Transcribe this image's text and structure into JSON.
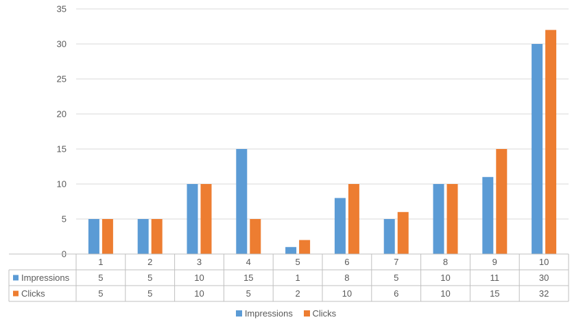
{
  "chart_data": {
    "type": "bar",
    "categories": [
      "1",
      "2",
      "3",
      "4",
      "5",
      "6",
      "7",
      "8",
      "9",
      "10"
    ],
    "series": [
      {
        "name": "Impressions",
        "color": "#5b9bd5",
        "values": [
          5,
          5,
          10,
          15,
          1,
          8,
          5,
          10,
          11,
          30
        ]
      },
      {
        "name": "Clicks",
        "color": "#ed7d31",
        "values": [
          5,
          5,
          10,
          5,
          2,
          10,
          6,
          10,
          15,
          32
        ]
      }
    ],
    "ylim": [
      0,
      35
    ],
    "yticks": [
      0,
      5,
      10,
      15,
      20,
      25,
      30,
      35
    ],
    "grid": true,
    "data_table": true,
    "legend_position": "bottom"
  }
}
